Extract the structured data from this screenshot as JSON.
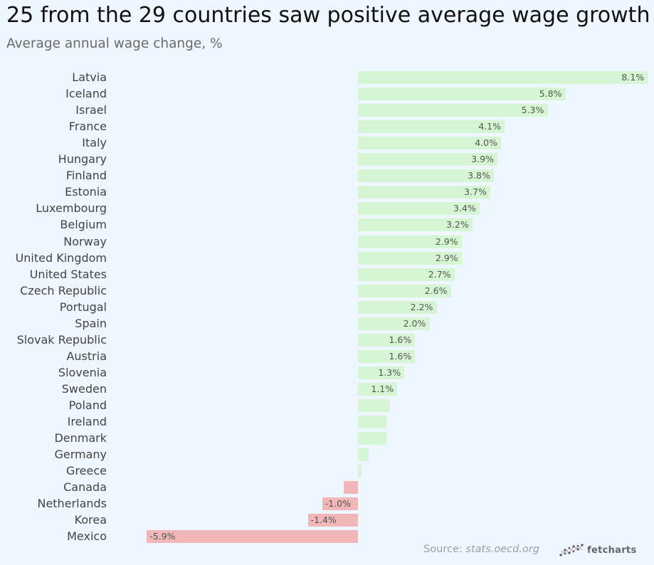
{
  "header": {
    "title": "25 from the 29 countries saw positive average wage growth",
    "subtitle": "Average annual wage change, %"
  },
  "footer": {
    "source_prefix": "Source: ",
    "source_site": "stats.oecd.org",
    "brand": "fetcharts",
    "brand_icon": "fetcharts-logo-icon"
  },
  "colors": {
    "positive": "#d6f5d2",
    "negative": "#f0b6b8",
    "background": "#eef6ff"
  },
  "chart_data": {
    "type": "bar",
    "orientation": "horizontal",
    "title": "25 from the 29 countries saw positive average wage growth",
    "subtitle": "Average annual wage change, %",
    "categories": [
      "Latvia",
      "Iceland",
      "Israel",
      "France",
      "Italy",
      "Hungary",
      "Finland",
      "Estonia",
      "Luxembourg",
      "Belgium",
      "Norway",
      "United Kingdom",
      "United States",
      "Czech Republic",
      "Portugal",
      "Spain",
      "Slovak Republic",
      "Austria",
      "Slovenia",
      "Sweden",
      "Poland",
      "Ireland",
      "Denmark",
      "Germany",
      "Greece",
      "Canada",
      "Netherlands",
      "Korea",
      "Mexico"
    ],
    "values": [
      8.1,
      5.8,
      5.3,
      4.1,
      4.0,
      3.9,
      3.8,
      3.7,
      3.4,
      3.2,
      2.9,
      2.9,
      2.7,
      2.6,
      2.2,
      2.0,
      1.6,
      1.6,
      1.3,
      1.1,
      0.9,
      0.8,
      0.8,
      0.3,
      0.1,
      -0.4,
      -1.0,
      -1.4,
      -5.9
    ],
    "data_labels": [
      "8.1%",
      "5.8%",
      "5.3%",
      "4.1%",
      "4.0%",
      "3.9%",
      "3.8%",
      "3.7%",
      "3.4%",
      "3.2%",
      "2.9%",
      "2.9%",
      "2.7%",
      "2.6%",
      "2.2%",
      "2.0%",
      "1.6%",
      "1.6%",
      "1.3%",
      "1.1%",
      "",
      "",
      "",
      "",
      "",
      "",
      "-1.0%",
      "-1.4%",
      "-5.9%"
    ],
    "xlim": [
      -5.9,
      8.1
    ],
    "grid": false,
    "legend": "none"
  }
}
